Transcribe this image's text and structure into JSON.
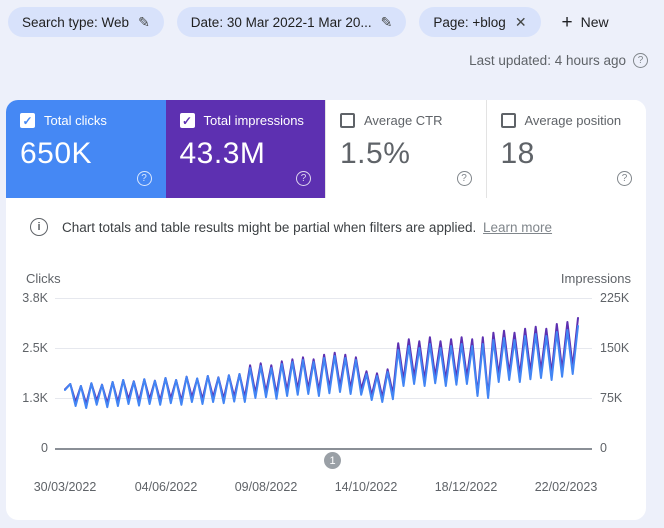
{
  "icons": {
    "edit": "✎",
    "close": "✕",
    "plus": "+",
    "help": "?",
    "info": "i",
    "check": "✓"
  },
  "filters": {
    "chips": [
      {
        "label": "Search type: Web",
        "action": "edit"
      },
      {
        "label": "Date: 30 Mar 2022-1 Mar 20...",
        "action": "edit"
      },
      {
        "label": "Page: +blog",
        "action": "remove"
      }
    ],
    "new_button_label": "New"
  },
  "status": {
    "last_updated": "Last updated: 4 hours ago"
  },
  "metrics": [
    {
      "label": "Total clicks",
      "value": "650K",
      "checked": true,
      "color": "#4588f4",
      "text_color": "#ffffff"
    },
    {
      "label": "Total impressions",
      "value": "43.3M",
      "checked": true,
      "color": "#5d30b1",
      "text_color": "#ffffff"
    },
    {
      "label": "Average CTR",
      "value": "1.5%",
      "checked": false,
      "color": "#ffffff",
      "text_color": "#5f6368"
    },
    {
      "label": "Average position",
      "value": "18",
      "checked": false,
      "color": "#ffffff",
      "text_color": "#5f6368"
    }
  ],
  "banner": {
    "text": "Chart totals and table results might be partial when filters are applied.",
    "link": "Learn more"
  },
  "chart_data": {
    "type": "line",
    "left_axis": {
      "label": "Clicks",
      "ticks": [
        "3.8K",
        "2.5K",
        "1.3K",
        "0"
      ],
      "max_k": 3.75
    },
    "right_axis": {
      "label": "Impressions",
      "ticks": [
        "225K",
        "150K",
        "75K",
        "0"
      ],
      "max_k": 225
    },
    "x_ticks": [
      "30/03/2022",
      "04/06/2022",
      "09/08/2022",
      "14/10/2022",
      "18/12/2022",
      "22/02/2023"
    ],
    "pagination_marker": "1",
    "grid": true,
    "legend_position": "none",
    "series": [
      {
        "name": "Impressions",
        "axis": "right",
        "color": "#5d30b1",
        "unit": "K",
        "values": [
          88,
          96,
          69,
          93,
          66,
          97,
          71,
          95,
          67,
          99,
          69,
          102,
          73,
          100,
          70,
          103,
          73,
          101,
          71,
          105,
          74,
          102,
          71,
          107,
          76,
          104,
          73,
          108,
          76,
          106,
          74,
          109,
          77,
          111,
          76,
          124,
          82,
          127,
          84,
          124,
          81,
          130,
          86,
          133,
          88,
          136,
          89,
          133,
          86,
          140,
          90,
          143,
          92,
          140,
          89,
          136,
          88,
          115,
          79,
          112,
          76,
          118,
          81,
          157,
          102,
          163,
          106,
          160,
          102,
          166,
          107,
          160,
          102,
          163,
          104,
          166,
          106,
          163,
          81,
          166,
          78,
          173,
          109,
          176,
          112,
          173,
          109,
          179,
          114,
          182,
          116,
          179,
          112,
          186,
          117,
          189,
          122,
          195
        ]
      },
      {
        "name": "Clicks",
        "axis": "left",
        "color": "#4285f4",
        "unit": "K",
        "values": [
          1.45,
          1.6,
          1.05,
          1.55,
          1.0,
          1.62,
          1.08,
          1.58,
          1.02,
          1.65,
          1.05,
          1.7,
          1.1,
          1.66,
          1.06,
          1.72,
          1.1,
          1.68,
          1.08,
          1.75,
          1.12,
          1.7,
          1.08,
          1.78,
          1.15,
          1.74,
          1.1,
          1.8,
          1.15,
          1.76,
          1.12,
          1.82,
          1.16,
          1.85,
          1.15,
          2.0,
          1.25,
          2.05,
          1.27,
          2.0,
          1.23,
          2.1,
          1.3,
          2.15,
          1.33,
          2.2,
          1.35,
          2.15,
          1.3,
          2.25,
          1.37,
          2.3,
          1.4,
          2.25,
          1.35,
          2.2,
          1.33,
          1.85,
          1.2,
          1.8,
          1.15,
          1.9,
          1.22,
          2.45,
          1.55,
          2.55,
          1.6,
          2.5,
          1.55,
          2.6,
          1.62,
          2.5,
          1.55,
          2.55,
          1.58,
          2.6,
          1.6,
          2.55,
          1.3,
          2.6,
          1.25,
          2.7,
          1.65,
          2.75,
          1.7,
          2.7,
          1.65,
          2.8,
          1.72,
          2.85,
          1.75,
          2.8,
          1.7,
          2.9,
          1.78,
          2.95,
          1.85,
          3.05
        ]
      }
    ]
  }
}
